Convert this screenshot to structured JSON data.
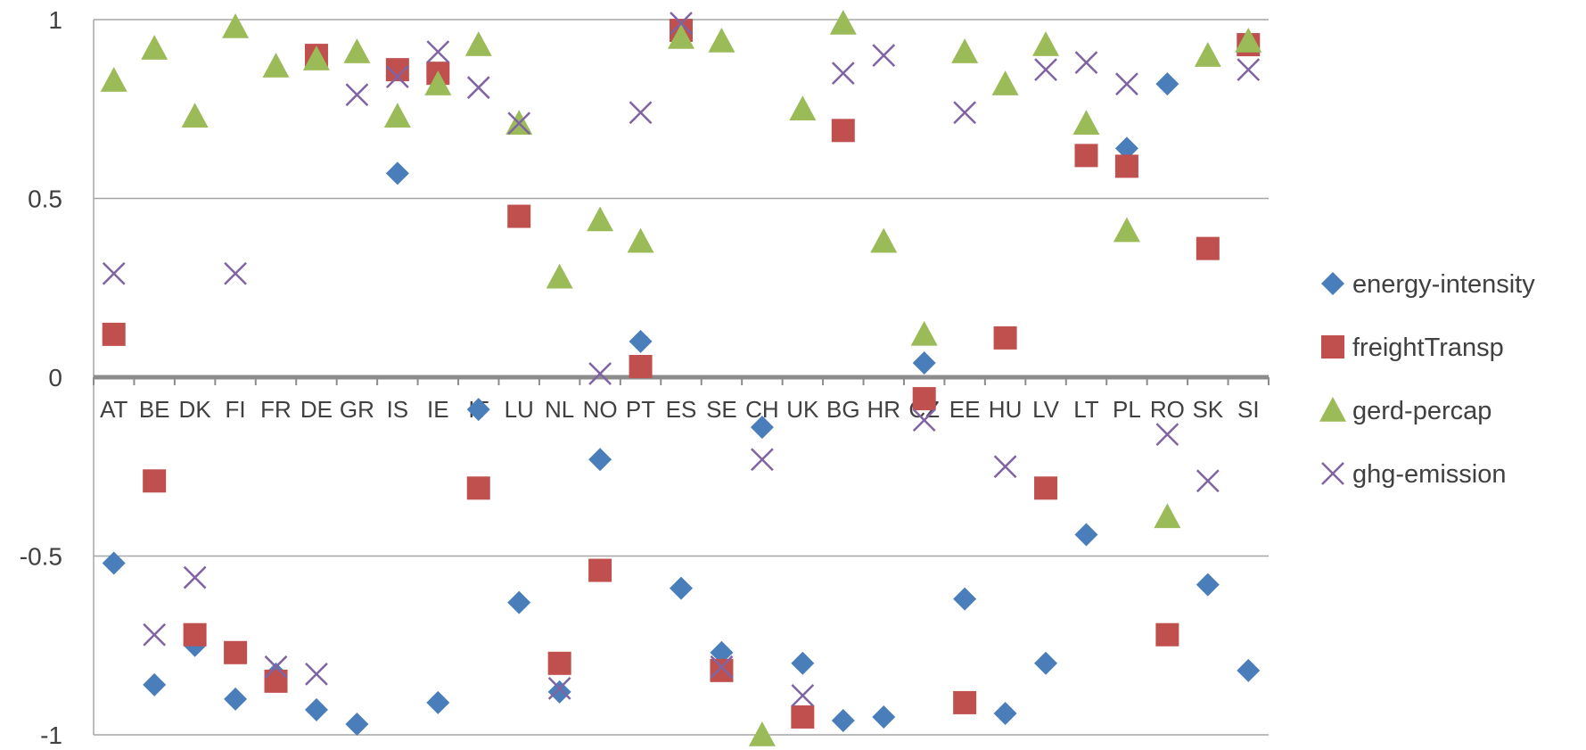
{
  "chart_data": {
    "type": "scatter",
    "title": "",
    "xlabel": "",
    "ylabel": "",
    "ylim": [
      -1,
      1
    ],
    "yticks": [
      -1,
      -0.5,
      0,
      0.5,
      1
    ],
    "ytick_labels": [
      "-1",
      "-0.5",
      "0",
      "0.5",
      "1"
    ],
    "grid": true,
    "legend_position": "right",
    "categories": [
      "AT",
      "BE",
      "DK",
      "FI",
      "FR",
      "DE",
      "GR",
      "IS",
      "IE",
      "IT",
      "LU",
      "NL",
      "NO",
      "PT",
      "ES",
      "SE",
      "CH",
      "UK",
      "BG",
      "HR",
      "CZ",
      "EE",
      "HU",
      "LV",
      "LT",
      "PL",
      "RO",
      "SK",
      "SI"
    ],
    "series": [
      {
        "name": "energy-intensity",
        "marker": "diamond",
        "color": "#4a7ebb",
        "values": [
          -0.52,
          -0.86,
          -0.75,
          -0.9,
          -0.83,
          -0.93,
          -0.97,
          0.57,
          -0.91,
          -0.09,
          -0.63,
          -0.88,
          -0.23,
          0.1,
          -0.59,
          -0.77,
          -0.14,
          -0.8,
          -0.96,
          -0.95,
          0.04,
          -0.62,
          -0.94,
          -0.8,
          -0.44,
          0.64,
          0.82,
          -0.58,
          -0.82
        ]
      },
      {
        "name": "freightTransp",
        "marker": "square",
        "color": "#c0504d",
        "values": [
          0.12,
          -0.29,
          -0.72,
          -0.77,
          -0.85,
          0.9,
          null,
          0.86,
          0.85,
          -0.31,
          0.45,
          -0.8,
          -0.54,
          0.03,
          0.97,
          -0.82,
          null,
          -0.95,
          0.69,
          null,
          -0.06,
          -0.91,
          0.11,
          -0.31,
          0.62,
          0.59,
          -0.72,
          0.36,
          0.93
        ]
      },
      {
        "name": "gerd-percap",
        "marker": "triangle",
        "color": "#9bbb59",
        "values": [
          0.83,
          0.92,
          0.73,
          0.98,
          0.87,
          0.89,
          0.91,
          0.73,
          0.82,
          0.93,
          0.71,
          0.28,
          0.44,
          0.38,
          0.95,
          0.94,
          -1.0,
          0.75,
          0.99,
          0.38,
          0.12,
          0.91,
          0.82,
          0.93,
          0.71,
          0.41,
          -0.39,
          0.9,
          0.94
        ]
      },
      {
        "name": "ghg-emission",
        "marker": "x",
        "color": "#8064a2",
        "values": [
          0.29,
          -0.72,
          -0.56,
          0.29,
          -0.81,
          -0.83,
          0.79,
          0.84,
          0.91,
          0.81,
          0.71,
          -0.87,
          0.01,
          0.74,
          0.99,
          -0.81,
          -0.23,
          -0.89,
          0.85,
          0.9,
          -0.12,
          0.74,
          -0.25,
          0.86,
          0.88,
          0.82,
          -0.16,
          -0.29,
          0.86
        ]
      }
    ]
  }
}
